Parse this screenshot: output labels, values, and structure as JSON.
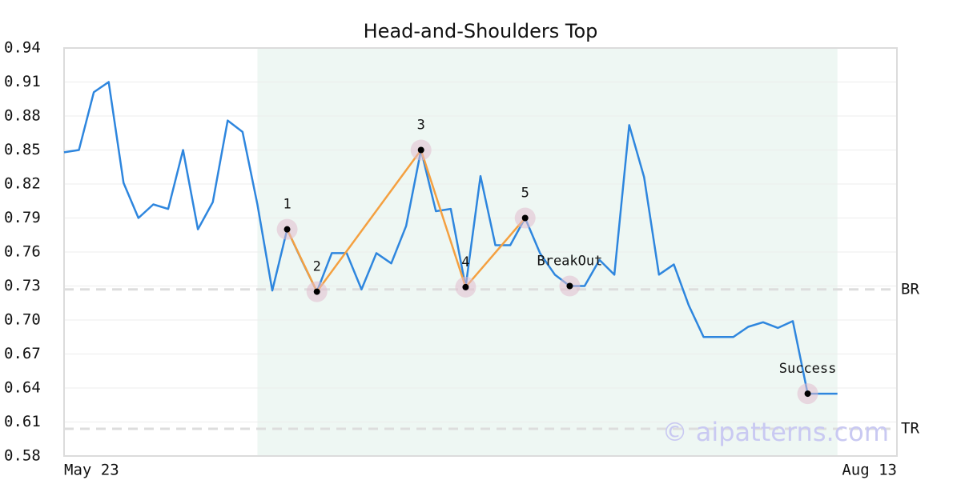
{
  "chart_data": {
    "type": "line",
    "title": "Head-and-Shoulders Top",
    "categories": [
      "May 23",
      null,
      null,
      null,
      null,
      null,
      null,
      null,
      null,
      null,
      null,
      null,
      null,
      null,
      null,
      null,
      null,
      null,
      null,
      null,
      null,
      null,
      null,
      null,
      null,
      null,
      null,
      null,
      null,
      null,
      null,
      null,
      null,
      null,
      null,
      null,
      null,
      null,
      null,
      null,
      null,
      null,
      null,
      null,
      null,
      null,
      null,
      null,
      null,
      null,
      null,
      null,
      null,
      null,
      null,
      null,
      "Aug 13"
    ],
    "series": [
      {
        "color": "#2e86de",
        "values": [
          0.848,
          0.85,
          0.901,
          0.91,
          0.821,
          0.79,
          0.802,
          0.798,
          0.85,
          0.78,
          0.804,
          0.876,
          0.866,
          0.802,
          0.726,
          0.78,
          0.752,
          0.725,
          0.759,
          0.759,
          0.727,
          0.759,
          0.75,
          0.783,
          0.85,
          0.796,
          0.798,
          0.729,
          0.827,
          0.766,
          0.766,
          0.79,
          0.759,
          0.74,
          0.73,
          0.73,
          0.753,
          0.74,
          0.872,
          0.826,
          0.74,
          0.749,
          0.713,
          0.685,
          0.685,
          0.685,
          0.694,
          0.698,
          0.693,
          0.699,
          0.635,
          0.635,
          0.635,
          null,
          null,
          null,
          null
        ]
      }
    ],
    "pattern_color": "#f4a040",
    "highlight": [
      13,
      52
    ],
    "points": [
      {
        "label": "1",
        "x": 15,
        "value": 0.78
      },
      {
        "label": "2",
        "x": 17,
        "value": 0.725
      },
      {
        "label": "3",
        "x": 24,
        "value": 0.85
      },
      {
        "label": "4",
        "x": 27,
        "value": 0.729
      },
      {
        "label": "5",
        "x": 31,
        "value": 0.79
      },
      {
        "label": "BreakOut",
        "x": 34,
        "value": 0.73
      },
      {
        "label": "Success",
        "x": 50,
        "value": 0.635
      }
    ],
    "pattern_points": 5,
    "levels": [
      {
        "label": "BR",
        "value": 0.727
      },
      {
        "label": "TR",
        "value": 0.604
      }
    ],
    "watermark": "© aipatterns.com",
    "ylim": [
      0.58,
      0.94
    ],
    "yticks": [
      0.58,
      0.61,
      0.64,
      0.67,
      {
        "value": 0.7,
        "label": "0.70"
      },
      0.73,
      0.76,
      0.79,
      0.82,
      0.85,
      0.88,
      0.91,
      0.94
    ],
    "grid": true
  }
}
